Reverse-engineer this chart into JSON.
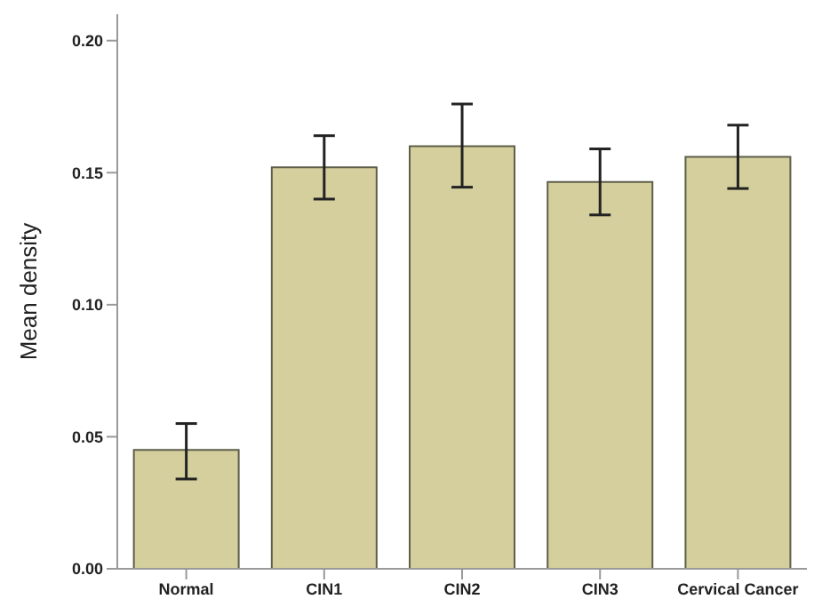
{
  "chart_data": {
    "type": "bar",
    "ylabel": "Mean density",
    "categories": [
      "Normal",
      "CIN1",
      "CIN2",
      "CIN3",
      "Cervical Cancer"
    ],
    "values": [
      0.045,
      0.152,
      0.16,
      0.1465,
      0.156
    ],
    "errors": [
      [
        0.034,
        0.055
      ],
      [
        0.14,
        0.164
      ],
      [
        0.1445,
        0.176
      ],
      [
        0.134,
        0.159
      ],
      [
        0.144,
        0.168
      ]
    ],
    "color": "#d4cf9c",
    "ylim": [
      0,
      0.21
    ],
    "yticks": [
      {
        "value": 0,
        "label": "0.00"
      },
      {
        "value": 0.05,
        "label": "0.05"
      },
      {
        "value": 0.1,
        "label": "0.10"
      },
      {
        "value": 0.15,
        "label": "0.15"
      },
      {
        "value": 0.2,
        "label": "0.20"
      }
    ],
    "grid": false,
    "legend": false
  }
}
